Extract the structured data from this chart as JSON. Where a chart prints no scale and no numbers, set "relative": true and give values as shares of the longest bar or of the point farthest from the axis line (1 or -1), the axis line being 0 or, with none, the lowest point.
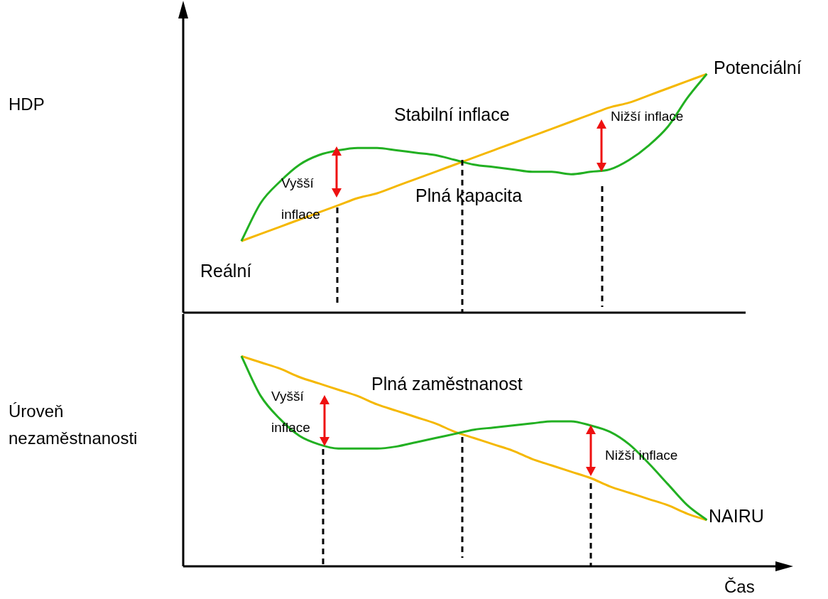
{
  "chart_data": [
    {
      "type": "line",
      "ylabel": "HDP",
      "relative": true,
      "legend": false,
      "marker": "none",
      "line_style": "solid",
      "categories": [
        null,
        null,
        null,
        null,
        null,
        null,
        null,
        null,
        null,
        null,
        null,
        null,
        null,
        null,
        null,
        null,
        null,
        null,
        null,
        null,
        null,
        null,
        null,
        null,
        null,
        null,
        null,
        null,
        null,
        null
      ],
      "series": [
        {
          "color": "#22b022",
          "values": [
            null,
            null,
            null,
            0.3,
            0.46,
            0.55,
            0.62,
            0.66,
            0.68,
            0.69,
            0.69,
            0.68,
            0.67,
            0.66,
            0.64,
            0.62,
            0.61,
            0.6,
            0.59,
            0.59,
            0.58,
            0.59,
            0.6,
            0.64,
            0.7,
            0.78,
            0.9,
            1.0,
            null,
            null
          ]
        },
        {
          "color": "#f5b800",
          "values": [
            null,
            null,
            null,
            0.3,
            0.33,
            0.36,
            0.39,
            0.42,
            0.45,
            0.48,
            0.5,
            0.53,
            0.56,
            0.59,
            0.62,
            0.65,
            0.68,
            0.71,
            0.74,
            0.77,
            0.8,
            0.83,
            0.86,
            0.88,
            0.91,
            0.94,
            0.97,
            1.0,
            null,
            null
          ]
        }
      ],
      "annotations": [
        "Potenciální",
        "Stabilní inflace",
        "Nižší inflace",
        "Vyšší inflace",
        "Plná kapacita",
        "Reální"
      ]
    },
    {
      "type": "line",
      "ylabel": "Úroveň nezaměstnanosti",
      "xlabel": "Čas",
      "relative": true,
      "legend": false,
      "marker": "none",
      "line_style": "solid",
      "categories": [
        null,
        null,
        null,
        null,
        null,
        null,
        null,
        null,
        null,
        null,
        null,
        null,
        null,
        null,
        null,
        null,
        null,
        null,
        null,
        null,
        null,
        null,
        null,
        null,
        null,
        null,
        null,
        null,
        null,
        null
      ],
      "series": [
        {
          "color": "#22b022",
          "values": [
            null,
            null,
            null,
            1.0,
            0.81,
            0.7,
            0.62,
            0.58,
            0.56,
            0.56,
            0.56,
            0.57,
            0.59,
            0.61,
            0.63,
            0.65,
            0.66,
            0.67,
            0.68,
            0.69,
            0.69,
            0.67,
            0.64,
            0.58,
            0.49,
            0.39,
            0.29,
            0.22,
            null,
            null
          ]
        },
        {
          "color": "#f5b800",
          "values": [
            null,
            null,
            null,
            1.0,
            0.97,
            0.94,
            0.9,
            0.87,
            0.84,
            0.81,
            0.77,
            0.74,
            0.71,
            0.68,
            0.64,
            0.61,
            0.58,
            0.55,
            0.51,
            0.48,
            0.45,
            0.42,
            0.38,
            0.35,
            0.32,
            0.29,
            0.25,
            0.22,
            null,
            null
          ]
        }
      ],
      "annotations": [
        "Vyšší inflace",
        "Plná zaměstnanost",
        "Nižší inflace",
        "NAIRU"
      ]
    }
  ]
}
